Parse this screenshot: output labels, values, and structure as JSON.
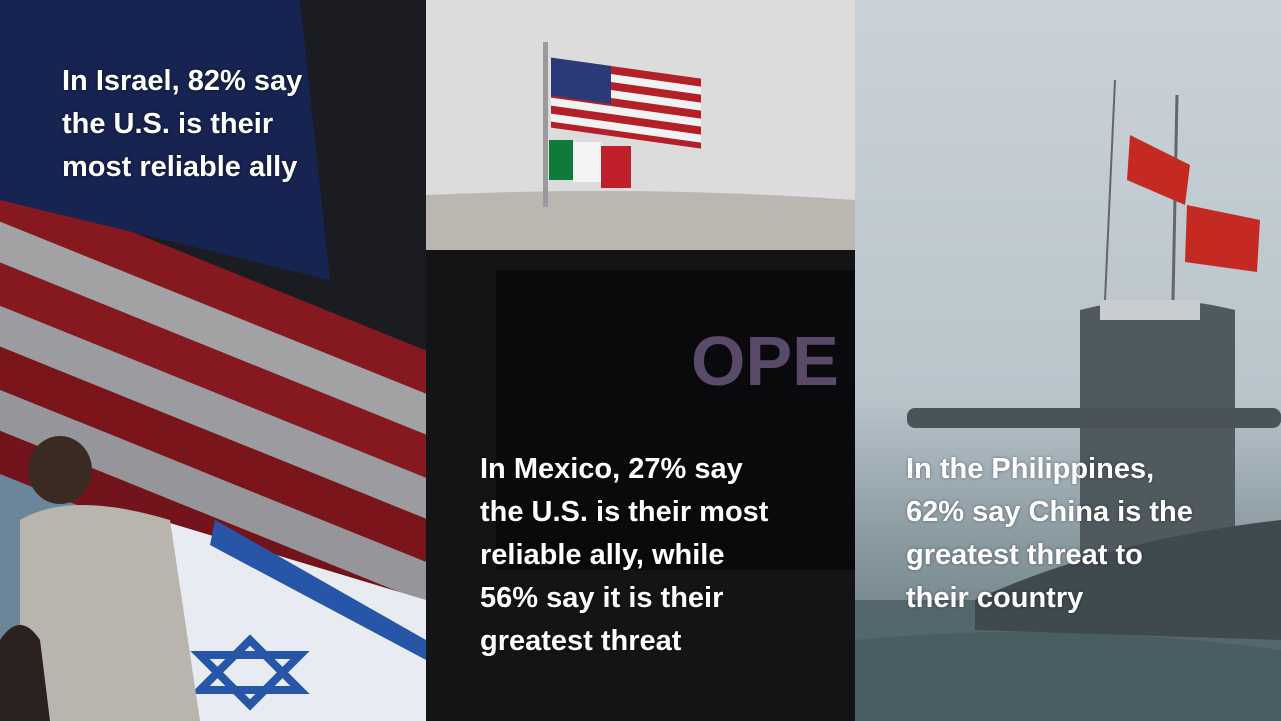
{
  "panels": [
    {
      "country": "Israel",
      "lines": [
        "In Israel, 82% say",
        "the U.S. is their",
        "most reliable ally"
      ]
    },
    {
      "country": "Mexico",
      "lines": [
        "In Mexico, 27% say",
        "the U.S. is their most",
        "reliable ally, while",
        "56% say it is their",
        "greatest threat"
      ],
      "sign_text": "OPE"
    },
    {
      "country": "Philippines",
      "lines": [
        "In the Philippines,",
        "62% say China is the",
        "greatest threat to",
        "their country"
      ]
    }
  ],
  "colors": {
    "text": "#ffffff",
    "flag_red": "#b3202a",
    "flag_blue": "#1f2f6b"
  }
}
